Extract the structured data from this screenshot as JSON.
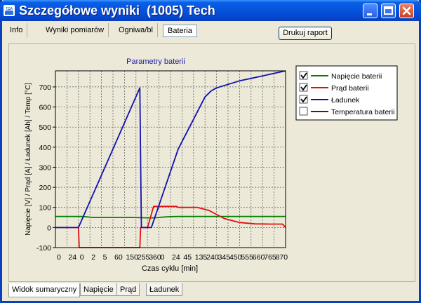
{
  "window": {
    "title": "Szczegółowe wyniki  (1005) Tech",
    "app_icon_text": "TDA"
  },
  "top_tabs": [
    {
      "label": "Info"
    },
    {
      "label": "Wyniki pomiarów"
    },
    {
      "label": "Ogniwa/bl"
    },
    {
      "label": "Bateria"
    }
  ],
  "print_button": {
    "label": "Drukuj raport"
  },
  "bottom_tabs": [
    {
      "label": "Widok sumaryczny"
    },
    {
      "label": "Napięcie"
    },
    {
      "label": "Prąd"
    },
    {
      "label": "Ładunek"
    }
  ],
  "colors": {
    "voltage": "#008000",
    "current": "#e01010",
    "charge": "#1010b0",
    "temperature": "#8b0000"
  },
  "chart_data": {
    "type": "line",
    "title": "Parametry baterii",
    "xlabel": "Czas cyklu [min]",
    "ylabel": "Napięcie [V] / Prąd [A] / Ładunek [Ah] / Temp [°C]",
    "ylim": [
      -100,
      780
    ],
    "yticks": [
      -100,
      0,
      100,
      200,
      300,
      400,
      500,
      600,
      700
    ],
    "xtick_labels": [
      "0",
      "24",
      "0",
      "2",
      "5",
      "60",
      "150",
      "255",
      "360",
      "0",
      "24",
      "45",
      "135",
      "240",
      "345",
      "450",
      "555",
      "660",
      "765",
      "870"
    ],
    "grid": true,
    "legend_position": "top-right",
    "series": [
      {
        "name": "Napięcie baterii",
        "checked": true,
        "x": [
          0,
          12,
          24,
          36,
          48,
          60,
          80,
          100,
          120,
          130,
          140,
          150,
          160,
          200,
          240,
          280,
          300
        ],
        "y": [
          55,
          55,
          55,
          55,
          50,
          50,
          50,
          50,
          48,
          48,
          52,
          54,
          55,
          55,
          55,
          55,
          55
        ]
      },
      {
        "name": "Prąd baterii",
        "checked": true,
        "x": [
          0,
          30,
          31,
          110,
          111,
          120,
          122,
          126,
          128,
          158,
          160,
          185,
          200,
          220,
          240,
          260,
          280,
          296,
          300
        ],
        "y": [
          0,
          0,
          -100,
          -100,
          0,
          0,
          25,
          80,
          105,
          105,
          100,
          100,
          85,
          45,
          25,
          18,
          17,
          17,
          0
        ]
      },
      {
        "name": "Ładunek",
        "checked": true,
        "x": [
          0,
          30,
          110,
          111,
          112,
          125,
          160,
          195,
          203,
          210,
          240,
          270,
          300
        ],
        "y": [
          0,
          0,
          695,
          340,
          0,
          0,
          390,
          650,
          680,
          695,
          730,
          755,
          780
        ]
      },
      {
        "name": "Temperatura baterii",
        "checked": false,
        "x": [],
        "y": []
      }
    ]
  }
}
